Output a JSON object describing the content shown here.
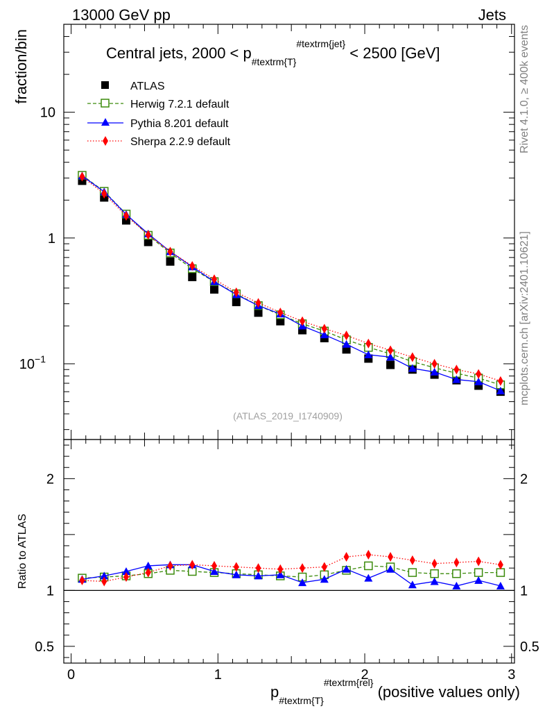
{
  "header": {
    "left": "13000 GeV pp",
    "right": "Jets"
  },
  "side_labels": {
    "rivet": "Rivet 4.1.0, ≥ 400k events",
    "mcplots": "mcplots.cern.ch [arXiv:2401.10621]"
  },
  "watermark": "(ATLAS_2019_I1740909)",
  "colors": {
    "atlas": "#000000",
    "herwig": "#3a8a0a",
    "pythia": "#0000ff",
    "sherpa": "#ff0000"
  },
  "chart_data": [
    {
      "type": "line",
      "panel": "main",
      "title": {
        "pre": "Central jets, 2000 < p",
        "sub": "#textrm{T}",
        "sup": "#textrm{jet}",
        "post": " < 2500 [GeV]"
      },
      "ylabel": "fraction/bin",
      "yscale": "log",
      "ylim": [
        0.025,
        50
      ],
      "xlim": [
        -0.05,
        3.02
      ],
      "y_ticks": [
        {
          "value": 0.1,
          "base": "10",
          "exp": "−1"
        },
        {
          "value": 1,
          "base": "1",
          "exp": ""
        },
        {
          "value": 10,
          "base": "10",
          "exp": ""
        }
      ],
      "x": [
        0.075,
        0.225,
        0.375,
        0.525,
        0.675,
        0.825,
        0.975,
        1.125,
        1.275,
        1.425,
        1.575,
        1.725,
        1.875,
        2.025,
        2.175,
        2.325,
        2.475,
        2.625,
        2.775,
        2.925
      ],
      "series": [
        {
          "key": "atlas",
          "name": "ATLAS",
          "marker": "square",
          "line": "none",
          "values": [
            2.85,
            2.1,
            1.38,
            0.93,
            0.65,
            0.49,
            0.39,
            0.31,
            0.255,
            0.218,
            0.185,
            0.16,
            0.13,
            0.11,
            0.098,
            0.09,
            0.082,
            0.074,
            0.067,
            0.06
          ]
        },
        {
          "key": "herwig",
          "name": "Herwig 7.2.1 default",
          "marker": "open-square",
          "line": "dashed",
          "values": [
            3.15,
            2.35,
            1.55,
            1.05,
            0.76,
            0.57,
            0.45,
            0.36,
            0.29,
            0.245,
            0.208,
            0.182,
            0.155,
            0.135,
            0.12,
            0.104,
            0.093,
            0.084,
            0.077,
            0.068
          ]
        },
        {
          "key": "pythia",
          "name": "Pythia 8.201 default",
          "marker": "triangle",
          "line": "solid",
          "values": [
            3.12,
            2.33,
            1.54,
            1.08,
            0.78,
            0.59,
            0.45,
            0.355,
            0.29,
            0.249,
            0.2,
            0.17,
            0.143,
            0.118,
            0.113,
            0.092,
            0.086,
            0.075,
            0.072,
            0.061
          ]
        },
        {
          "key": "sherpa",
          "name": "Sherpa 2.2.9 default",
          "marker": "diamond",
          "line": "dotted",
          "values": [
            3.07,
            2.25,
            1.5,
            1.06,
            0.78,
            0.6,
            0.47,
            0.37,
            0.305,
            0.256,
            0.218,
            0.19,
            0.168,
            0.145,
            0.128,
            0.113,
            0.1,
            0.09,
            0.083,
            0.073
          ]
        }
      ],
      "legend_position": "top-left"
    },
    {
      "type": "line",
      "panel": "ratio",
      "ylabel": "Ratio to ATLAS",
      "yscale": "linear",
      "ylim": [
        0.35,
        2.35
      ],
      "xlim": [
        -0.05,
        3.02
      ],
      "y_ticks": [
        0.5,
        1,
        2
      ],
      "x_ticks": [
        0,
        1,
        2,
        3
      ],
      "xlabel": {
        "pre": "p",
        "sub": "#textrm{T}",
        "sup": "#textrm{rel}",
        "post": " (positive values only)"
      },
      "x": [
        0.075,
        0.225,
        0.375,
        0.525,
        0.675,
        0.825,
        0.975,
        1.125,
        1.275,
        1.425,
        1.575,
        1.725,
        1.875,
        2.025,
        2.175,
        2.325,
        2.475,
        2.625,
        2.775,
        2.925
      ],
      "series": [
        {
          "key": "herwig",
          "name": "Herwig 7.2.1 default",
          "values": [
            1.11,
            1.12,
            1.13,
            1.15,
            1.18,
            1.17,
            1.16,
            1.15,
            1.14,
            1.13,
            1.12,
            1.14,
            1.18,
            1.22,
            1.21,
            1.16,
            1.15,
            1.15,
            1.16,
            1.16
          ]
        },
        {
          "key": "pythia",
          "name": "Pythia 8.201 default",
          "values": [
            1.1,
            1.13,
            1.17,
            1.22,
            1.23,
            1.23,
            1.17,
            1.14,
            1.13,
            1.14,
            1.07,
            1.1,
            1.19,
            1.11,
            1.19,
            1.05,
            1.08,
            1.04,
            1.09,
            1.04
          ]
        },
        {
          "key": "sherpa",
          "name": "Sherpa 2.2.9 default",
          "values": [
            1.09,
            1.08,
            1.12,
            1.16,
            1.22,
            1.23,
            1.22,
            1.21,
            1.2,
            1.19,
            1.2,
            1.21,
            1.3,
            1.32,
            1.3,
            1.27,
            1.24,
            1.25,
            1.26,
            1.23
          ]
        }
      ]
    }
  ]
}
